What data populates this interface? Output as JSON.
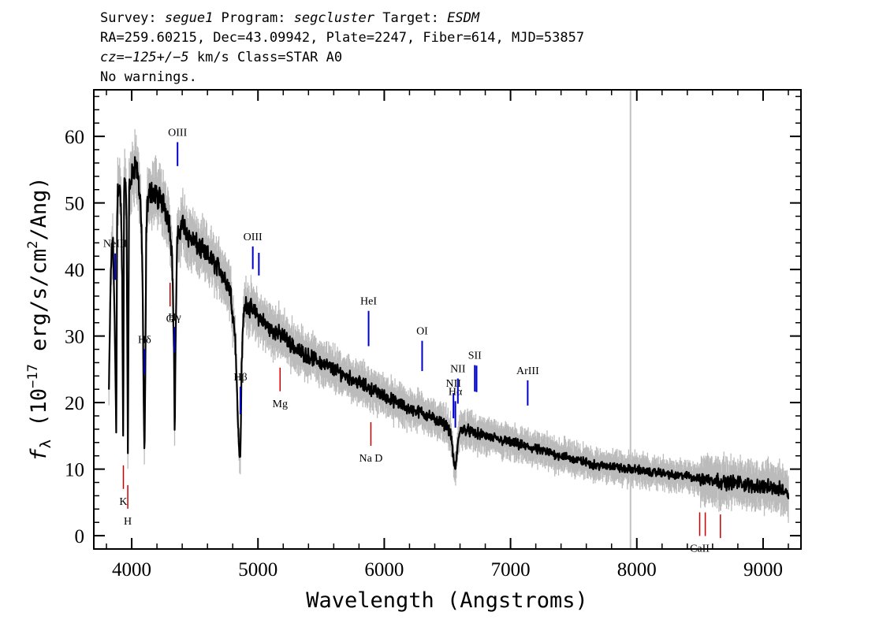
{
  "header": {
    "line1": {
      "survey_label": "Survey: ",
      "survey": "segue1",
      "program_label": " Program: ",
      "program": "segcluster",
      "target_label": " Target: ",
      "target": "ESDM"
    },
    "line2": "RA=259.60215, Dec=43.09942, Plate=2247, Fiber=614, MJD=53857",
    "line3": {
      "cz_label": "cz",
      "cz_value": "=−125+/−5",
      "cz_rest": " km/s Class=STAR A0"
    },
    "line4": "No warnings."
  },
  "chart_data": {
    "type": "line",
    "title": "",
    "xlabel": "Wavelength (Angstroms)",
    "ylabel": {
      "symbol": "f",
      "subscript": "λ",
      "prefix": " (10",
      "exponent": "−17",
      "unit": " erg/s/cm",
      "unit_exp": "2",
      "suffix": "/Ang)"
    },
    "xlim": [
      3700,
      9300
    ],
    "ylim": [
      -2,
      67
    ],
    "xticks": [
      4000,
      5000,
      6000,
      7000,
      8000,
      9000
    ],
    "yticks": [
      0,
      10,
      20,
      30,
      40,
      50,
      60
    ],
    "grid": false,
    "colors": {
      "flux": "#000000",
      "error_band": "#bbbbbb",
      "emission": "#0000cc",
      "absorption": "#cc0000",
      "artifact": "#c0c0c0"
    },
    "series": [
      {
        "role": "flux",
        "x": [
          3820,
          3835,
          3850,
          3860,
          3870,
          3878,
          3885,
          3890,
          3900,
          3915,
          3925,
          3933,
          3940,
          3950,
          3960,
          3970,
          3980,
          3990,
          4010,
          4030,
          4050,
          4070,
          4085,
          4095,
          4101,
          4108,
          4115,
          4125,
          4150,
          4200,
          4250,
          4300,
          4320,
          4335,
          4341,
          4348,
          4360,
          4380,
          4400,
          4450,
          4500,
          4600,
          4700,
          4780,
          4820,
          4840,
          4852,
          4861,
          4870,
          4885,
          4900,
          4950,
          5000,
          5100,
          5200,
          5300,
          5400,
          5500,
          5600,
          5700,
          5800,
          5900,
          6000,
          6100,
          6200,
          6300,
          6400,
          6450,
          6500,
          6530,
          6550,
          6563,
          6575,
          6590,
          6610,
          6650,
          6700,
          6800,
          6900,
          7000,
          7100,
          7200,
          7300,
          7400,
          7500,
          7600,
          7700,
          7800,
          7900,
          8000,
          8100,
          8200,
          8300,
          8400,
          8500,
          8600,
          8700,
          8800,
          8900,
          9000,
          9100,
          9150,
          9200
        ],
        "y": [
          22,
          40,
          45,
          38,
          26,
          15,
          48,
          52,
          53,
          50,
          38,
          13,
          52,
          54,
          48,
          12,
          52,
          53,
          55,
          56,
          54,
          50,
          40,
          20,
          11,
          25,
          45,
          50,
          52,
          51,
          50,
          47,
          42,
          28,
          14,
          30,
          44,
          46,
          47,
          45,
          44,
          42,
          40,
          37,
          30,
          18,
          12,
          12,
          25,
          33,
          35,
          34,
          33,
          31,
          30,
          28,
          27,
          26,
          25,
          24,
          23,
          22,
          21,
          20,
          19,
          18.5,
          17.5,
          17,
          16.5,
          15,
          11,
          10,
          12,
          15,
          16,
          16,
          15.5,
          15,
          14.5,
          14,
          13.5,
          13,
          12.5,
          12,
          11.5,
          11,
          10.5,
          10.5,
          10,
          10,
          9.5,
          9.5,
          9,
          9,
          8.5,
          8.5,
          8,
          8,
          7.5,
          7.5,
          7,
          7,
          6.5
        ]
      }
    ],
    "spectral_lines": [
      {
        "label": "NeIII",
        "x": 3869,
        "kind": "emission"
      },
      {
        "label": "Hδ",
        "x": 4102,
        "kind": "emission"
      },
      {
        "label": "Hγ",
        "x": 4340,
        "kind": "emission"
      },
      {
        "label": "OIII",
        "x": 4363,
        "kind": "emission"
      },
      {
        "label": "Hβ",
        "x": 4861,
        "kind": "emission"
      },
      {
        "label": "OIII",
        "x": 4959,
        "kind": "emission"
      },
      {
        "label": "",
        "x": 5007,
        "kind": "emission"
      },
      {
        "label": "HeI",
        "x": 5876,
        "kind": "emission"
      },
      {
        "label": "OI",
        "x": 6300,
        "kind": "emission"
      },
      {
        "label": "NII",
        "x": 6548,
        "kind": "emission"
      },
      {
        "label": "Hα",
        "x": 6563,
        "kind": "emission"
      },
      {
        "label": "NII",
        "x": 6583,
        "kind": "emission"
      },
      {
        "label": "SII",
        "x": 6717,
        "kind": "emission"
      },
      {
        "label": "",
        "x": 6731,
        "kind": "emission"
      },
      {
        "label": "ArIII",
        "x": 7136,
        "kind": "emission"
      },
      {
        "label": "K",
        "x": 3934,
        "kind": "absorption"
      },
      {
        "label": "H",
        "x": 3969,
        "kind": "absorption"
      },
      {
        "label": "G",
        "x": 4304,
        "kind": "absorption"
      },
      {
        "label": "Mg",
        "x": 5175,
        "kind": "absorption"
      },
      {
        "label": "Na D",
        "x": 5894,
        "kind": "absorption"
      },
      {
        "label": "CaII",
        "x": 8498,
        "kind": "absorption"
      },
      {
        "label": "",
        "x": 8542,
        "kind": "absorption"
      },
      {
        "label": "",
        "x": 8662,
        "kind": "absorption"
      }
    ],
    "artifact_x": 7950
  }
}
